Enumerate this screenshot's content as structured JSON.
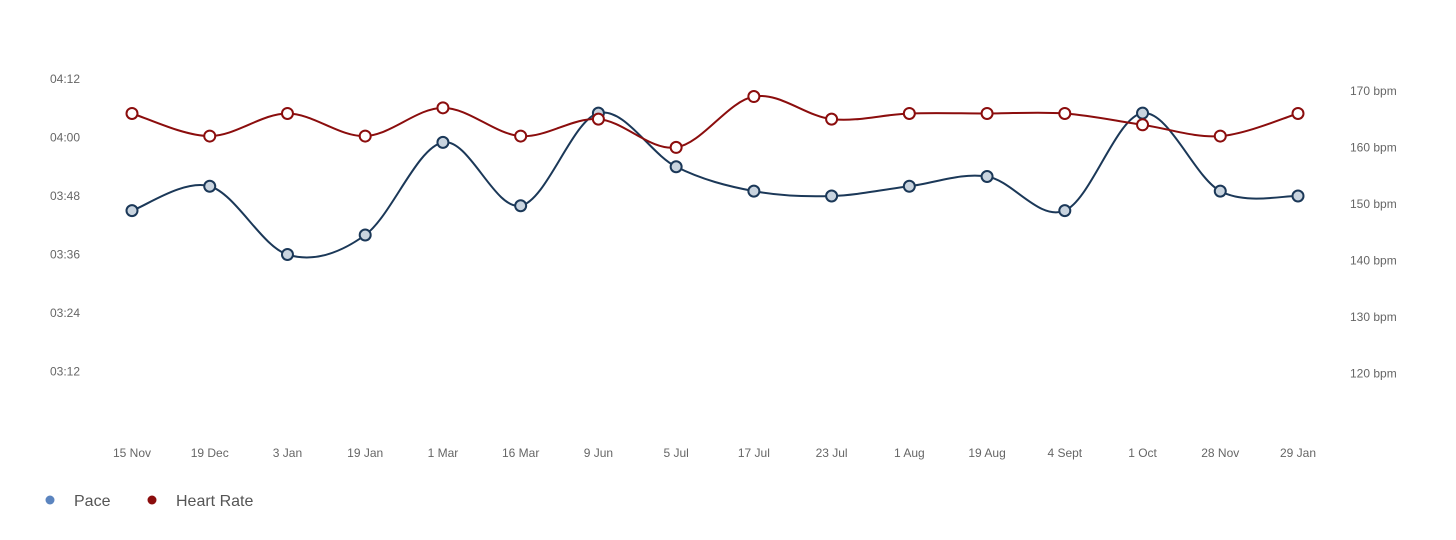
{
  "chart_data": {
    "type": "line",
    "categories": [
      "15 Nov",
      "19 Dec",
      "3 Jan",
      "19 Jan",
      "1 Mar",
      "16 Mar",
      "9 Jun",
      "5 Jul",
      "17 Jul",
      "23 Jul",
      "1 Aug",
      "19 Aug",
      "4 Sept",
      "1 Oct",
      "28 Nov",
      "29 Jan"
    ],
    "y_left": {
      "ticks": [
        "03:12",
        "03:24",
        "03:36",
        "03:48",
        "04:00",
        "04:12"
      ],
      "range_seconds": [
        180,
        260
      ]
    },
    "y_right": {
      "ticks": [
        "120 bpm",
        "130 bpm",
        "140 bpm",
        "150 bpm",
        "160 bpm",
        "170 bpm"
      ],
      "range": [
        110,
        179
      ]
    },
    "series": [
      {
        "name": "Pace",
        "axis": "left",
        "color": "#1b3858",
        "marker_fill": "#c9d4df",
        "legend_color": "#5b84bf",
        "values": [
          "03:45",
          "03:50",
          "03:36",
          "03:40",
          "03:59",
          "03:46",
          "04:05",
          "03:54",
          "03:49",
          "03:48",
          "03:50",
          "03:52",
          "03:45",
          "04:05",
          "03:49",
          "03:48"
        ]
      },
      {
        "name": "Heart Rate",
        "axis": "right",
        "color": "#8b0d0d",
        "marker_fill": "#ffffff",
        "legend_color": "#8b0d0d",
        "values": [
          166,
          162,
          166,
          162,
          167,
          162,
          165,
          160,
          169,
          165,
          166,
          166,
          166,
          164,
          162,
          166
        ]
      }
    ],
    "grid": false,
    "legend_position": "bottom-left"
  }
}
